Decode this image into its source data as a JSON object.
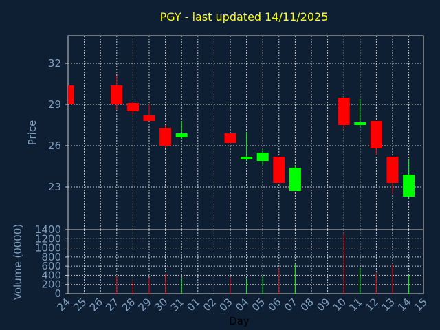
{
  "chart_data": {
    "type": "candlestick",
    "title": "PGY - last updated 14/11/2025",
    "colors": {
      "background": "#0f1f33",
      "title": "#ffff00",
      "axis_text": "#7f9fbf",
      "grid": "#c8c8c8",
      "up": "#00ff00",
      "down": "#ff0000"
    },
    "price_panel": {
      "ylabel": "Price",
      "ylim": [
        19.9,
        34
      ],
      "yticks": [
        23,
        26,
        29,
        32
      ]
    },
    "volume_panel": {
      "ylabel": "Volume (0000)",
      "ylim": [
        0,
        1400
      ],
      "yticks": [
        0,
        200,
        400,
        600,
        800,
        1000,
        1200,
        1400
      ]
    },
    "xlabel": "Day",
    "x_tick_labels": [
      "24",
      "25",
      "26",
      "27",
      "28",
      "29",
      "30",
      "31",
      "01",
      "02",
      "03",
      "04",
      "05",
      "06",
      "07",
      "08",
      "09",
      "10",
      "11",
      "12",
      "13",
      "14",
      "15"
    ],
    "candles": [
      {
        "day": "24",
        "open": 30.4,
        "high": 30.4,
        "low": 29.0,
        "close": 29.0,
        "volume": 0
      },
      {
        "day": "27",
        "open": 30.4,
        "high": 31.1,
        "low": 28.6,
        "close": 29.0,
        "volume": 390
      },
      {
        "day": "28",
        "open": 29.1,
        "high": 29.2,
        "low": 28.2,
        "close": 28.5,
        "volume": 280
      },
      {
        "day": "29",
        "open": 28.2,
        "high": 29.0,
        "low": 27.8,
        "close": 27.8,
        "volume": 350
      },
      {
        "day": "30",
        "open": 27.3,
        "high": 27.5,
        "low": 25.8,
        "close": 26.0,
        "volume": 440
      },
      {
        "day": "31",
        "open": 26.6,
        "high": 27.8,
        "low": 26.5,
        "close": 26.9,
        "volume": 330
      },
      {
        "day": "03",
        "open": 26.9,
        "high": 26.9,
        "low": 26.1,
        "close": 26.2,
        "volume": 360
      },
      {
        "day": "04",
        "open": 25.0,
        "high": 27.0,
        "low": 24.9,
        "close": 25.2,
        "volume": 330
      },
      {
        "day": "05",
        "open": 24.9,
        "high": 25.7,
        "low": 24.6,
        "close": 25.5,
        "volume": 380
      },
      {
        "day": "06",
        "open": 25.2,
        "high": 25.2,
        "low": 23.3,
        "close": 23.3,
        "volume": 560
      },
      {
        "day": "07",
        "open": 22.7,
        "high": 24.6,
        "low": 22.7,
        "close": 24.4,
        "volume": 650
      },
      {
        "day": "10",
        "open": 29.5,
        "high": 29.5,
        "low": 27.2,
        "close": 27.5,
        "volume": 1330
      },
      {
        "day": "11",
        "open": 27.5,
        "high": 29.4,
        "low": 27.3,
        "close": 27.7,
        "volume": 560
      },
      {
        "day": "12",
        "open": 27.8,
        "high": 27.8,
        "low": 25.3,
        "close": 25.8,
        "volume": 480
      },
      {
        "day": "13",
        "open": 25.2,
        "high": 25.2,
        "low": 22.5,
        "close": 23.3,
        "volume": 640
      },
      {
        "day": "14",
        "open": 22.3,
        "high": 25.0,
        "low": 22.1,
        "close": 23.9,
        "volume": 410
      }
    ]
  }
}
